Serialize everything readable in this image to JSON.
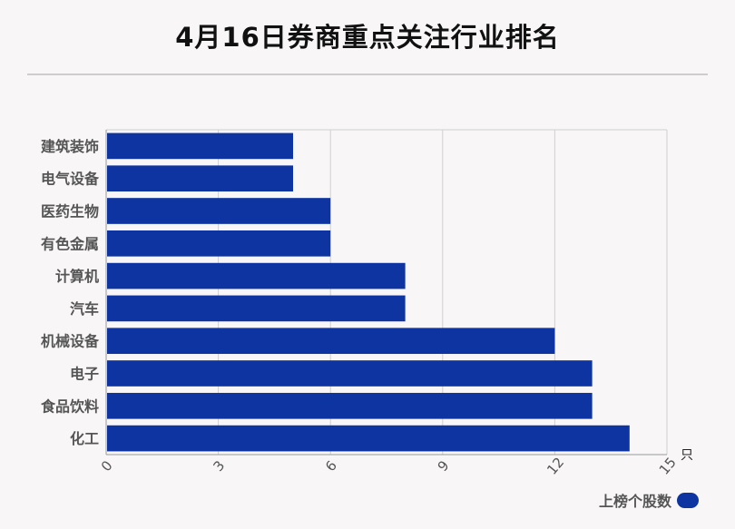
{
  "title": "4月16日券商重点关注行业排名",
  "colors": {
    "bar": "#0d34a0",
    "grid": "#d0d0d0",
    "axis": "#999999"
  },
  "chart_data": {
    "type": "bar",
    "orientation": "horizontal",
    "categories": [
      "建筑装饰",
      "电气设备",
      "医药生物",
      "有色金属",
      "计算机",
      "汽车",
      "机械设备",
      "电子",
      "食品饮料",
      "化工"
    ],
    "series": [
      {
        "name": "上榜个股数",
        "values": [
          5,
          5,
          6,
          6,
          8,
          8,
          12,
          13,
          13,
          14
        ]
      }
    ],
    "xlim": [
      0,
      15
    ],
    "xticks": [
      "0",
      "3",
      "6",
      "9",
      "12",
      "15"
    ],
    "x_unit": "只",
    "grid": true,
    "legend_position": "bottom-right"
  }
}
